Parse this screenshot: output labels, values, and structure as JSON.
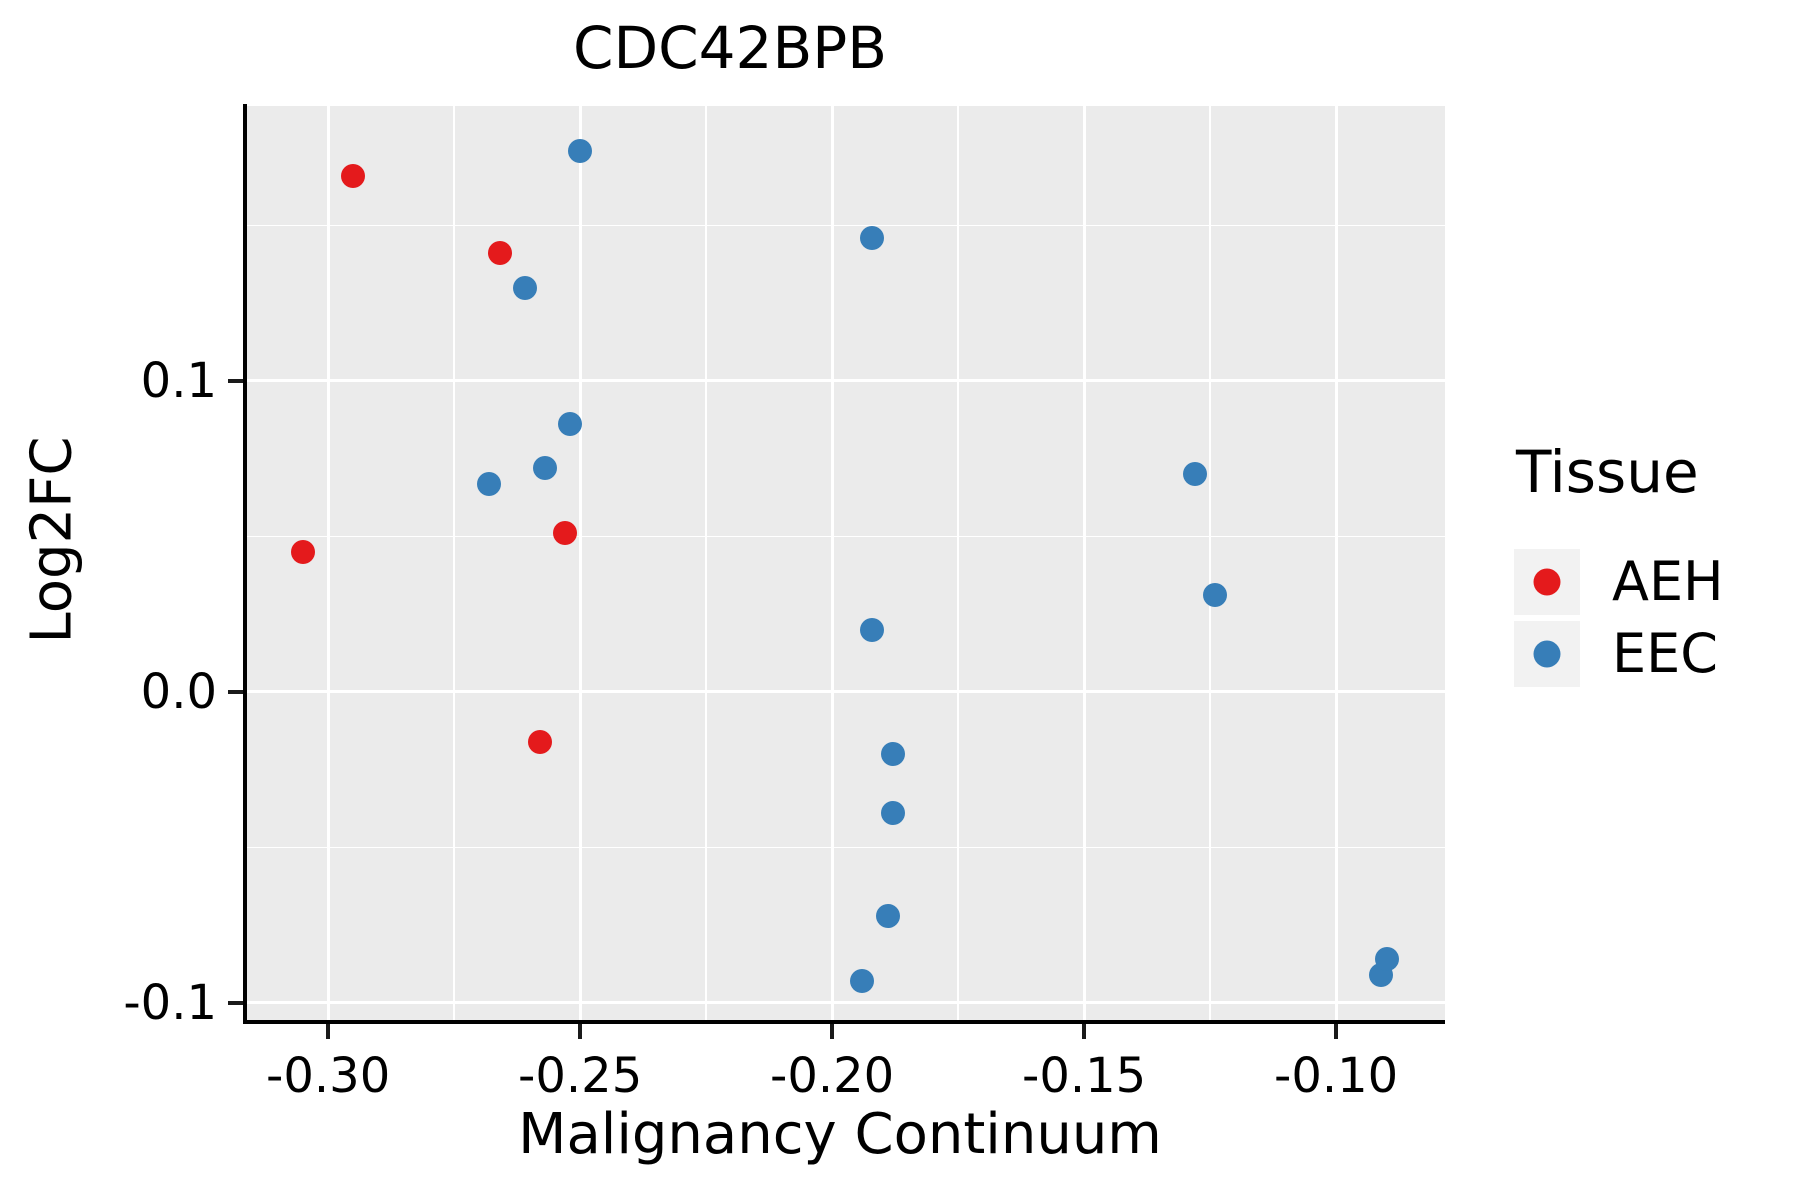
{
  "figure_title": "CDC42BPB",
  "legend": {
    "title": "Tissue",
    "entries": [
      {
        "label": "AEH",
        "color": "#e41a1c"
      },
      {
        "label": "EEC",
        "color": "#377eb8"
      }
    ]
  },
  "colors": {
    "panel_background": "#ebebeb",
    "grid": "#ffffff",
    "axis_line": "#000000",
    "tick": "#1a1a1a",
    "text": "#000000",
    "legend_key_background": "#f2f2f2",
    "aeh_red": "#e41a1c",
    "eec_blue": "#377eb8"
  },
  "chart_data": {
    "type": "scatter",
    "title": "CDC42BPB",
    "xlabel": "Malignancy Continuum",
    "ylabel": "Log2FC",
    "xlim": [
      -0.3161,
      -0.0784
    ],
    "ylim": [
      -0.1055,
      0.1884
    ],
    "x_major_ticks": [
      -0.3,
      -0.25,
      -0.2,
      -0.15,
      -0.1
    ],
    "x_tick_labels": [
      "-0.30",
      "-0.25",
      "-0.20",
      "-0.15",
      "-0.10"
    ],
    "x_minor_ticks": [
      -0.275,
      -0.225,
      -0.175,
      -0.125
    ],
    "y_major_ticks": [
      0.1,
      0.0,
      -0.1
    ],
    "y_tick_labels": [
      "0.1",
      "0.0",
      "-0.1"
    ],
    "y_minor_ticks": [
      0.15,
      0.05,
      -0.05
    ],
    "grid": "major+minor white on grey panel",
    "legend_position": "right",
    "legend_title": "Tissue",
    "series": [
      {
        "name": "AEH",
        "color": "#e41a1c",
        "points": [
          [
            -0.295,
            0.166
          ],
          [
            -0.266,
            0.141
          ],
          [
            -0.305,
            0.045
          ],
          [
            -0.253,
            0.051
          ],
          [
            -0.258,
            -0.016
          ]
        ]
      },
      {
        "name": "EEC",
        "color": "#377eb8",
        "points": [
          [
            -0.25,
            0.174
          ],
          [
            -0.261,
            0.13
          ],
          [
            -0.252,
            0.086
          ],
          [
            -0.257,
            0.072
          ],
          [
            -0.268,
            0.067
          ],
          [
            -0.192,
            0.146
          ],
          [
            -0.192,
            0.02
          ],
          [
            -0.188,
            -0.02
          ],
          [
            -0.188,
            -0.039
          ],
          [
            -0.189,
            -0.072
          ],
          [
            -0.194,
            -0.093
          ],
          [
            -0.128,
            0.07
          ],
          [
            -0.124,
            0.031
          ],
          [
            -0.091,
            -0.091
          ],
          [
            -0.09,
            -0.086
          ]
        ]
      }
    ]
  }
}
